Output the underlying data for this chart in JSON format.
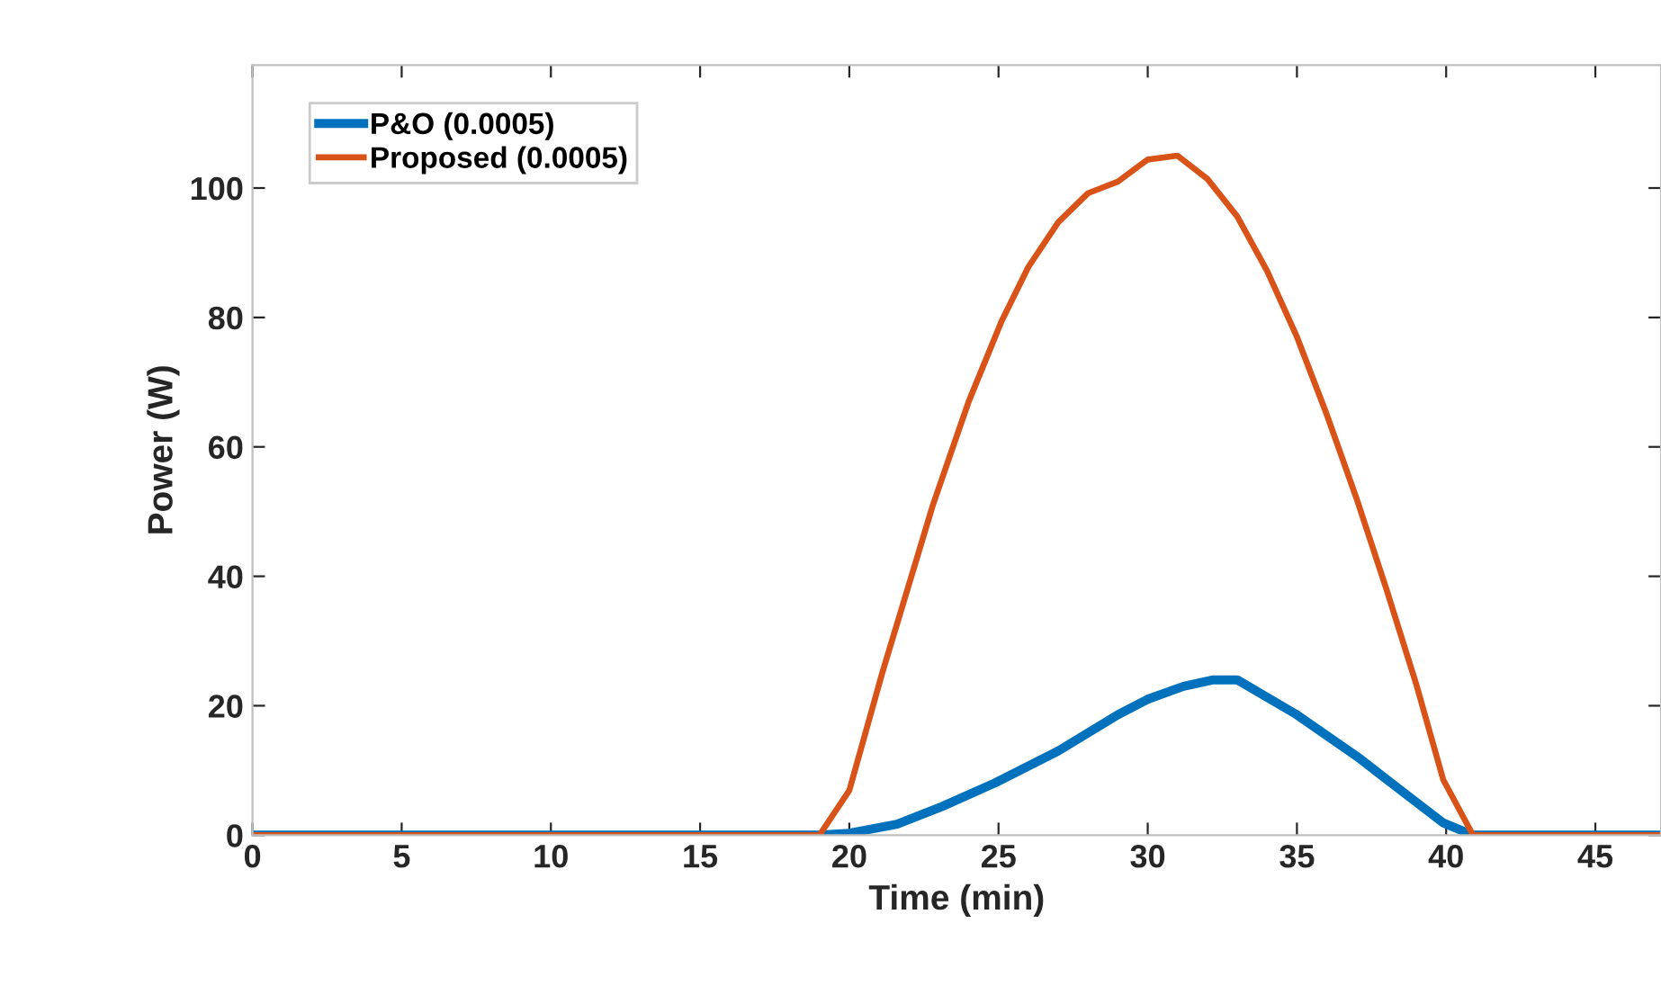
{
  "chart_data": {
    "type": "line",
    "xlabel": "Time (min)",
    "ylabel": "Power (W)",
    "xlim": [
      0,
      47.2
    ],
    "ylim": [
      0,
      119
    ],
    "xticks": [
      0,
      5,
      10,
      15,
      20,
      25,
      30,
      35,
      40,
      45
    ],
    "yticks": [
      0,
      20,
      40,
      60,
      80,
      100
    ],
    "grid": false,
    "legend": "top left",
    "marker": "none",
    "line_style": "solid",
    "series": [
      {
        "name": "P&O (0.0005)",
        "color": "#0072bd",
        "x": [
          0,
          19.0,
          20.0,
          21.6,
          23.1,
          24.9,
          27.0,
          29.0,
          30.0,
          31.2,
          32.2,
          33.0,
          35.0,
          37.0,
          38.8,
          39.9,
          40.9,
          47.2
        ],
        "values": [
          0,
          0,
          0.3,
          1.7,
          4.4,
          8.1,
          13,
          18.6,
          21,
          23,
          24,
          24,
          18.6,
          12.2,
          5.8,
          1.9,
          0,
          0
        ]
      },
      {
        "name": "Proposed (0.0005)",
        "color": "#d95319",
        "x": [
          0,
          19.0,
          20.0,
          21.1,
          22.8,
          24.0,
          25.1,
          26.0,
          27.0,
          28.0,
          29.0,
          30.0,
          31.0,
          32.0,
          33.0,
          34.0,
          35.0,
          36.0,
          37.0,
          38.0,
          39.0,
          39.9,
          40.9,
          47.2
        ],
        "values": [
          0,
          0,
          6.9,
          25,
          51,
          67,
          79.4,
          87.8,
          94.7,
          99.2,
          101,
          104.4,
          105,
          101.4,
          95.6,
          87.2,
          77,
          65,
          52,
          38,
          23.3,
          8.6,
          0,
          0
        ]
      }
    ]
  }
}
